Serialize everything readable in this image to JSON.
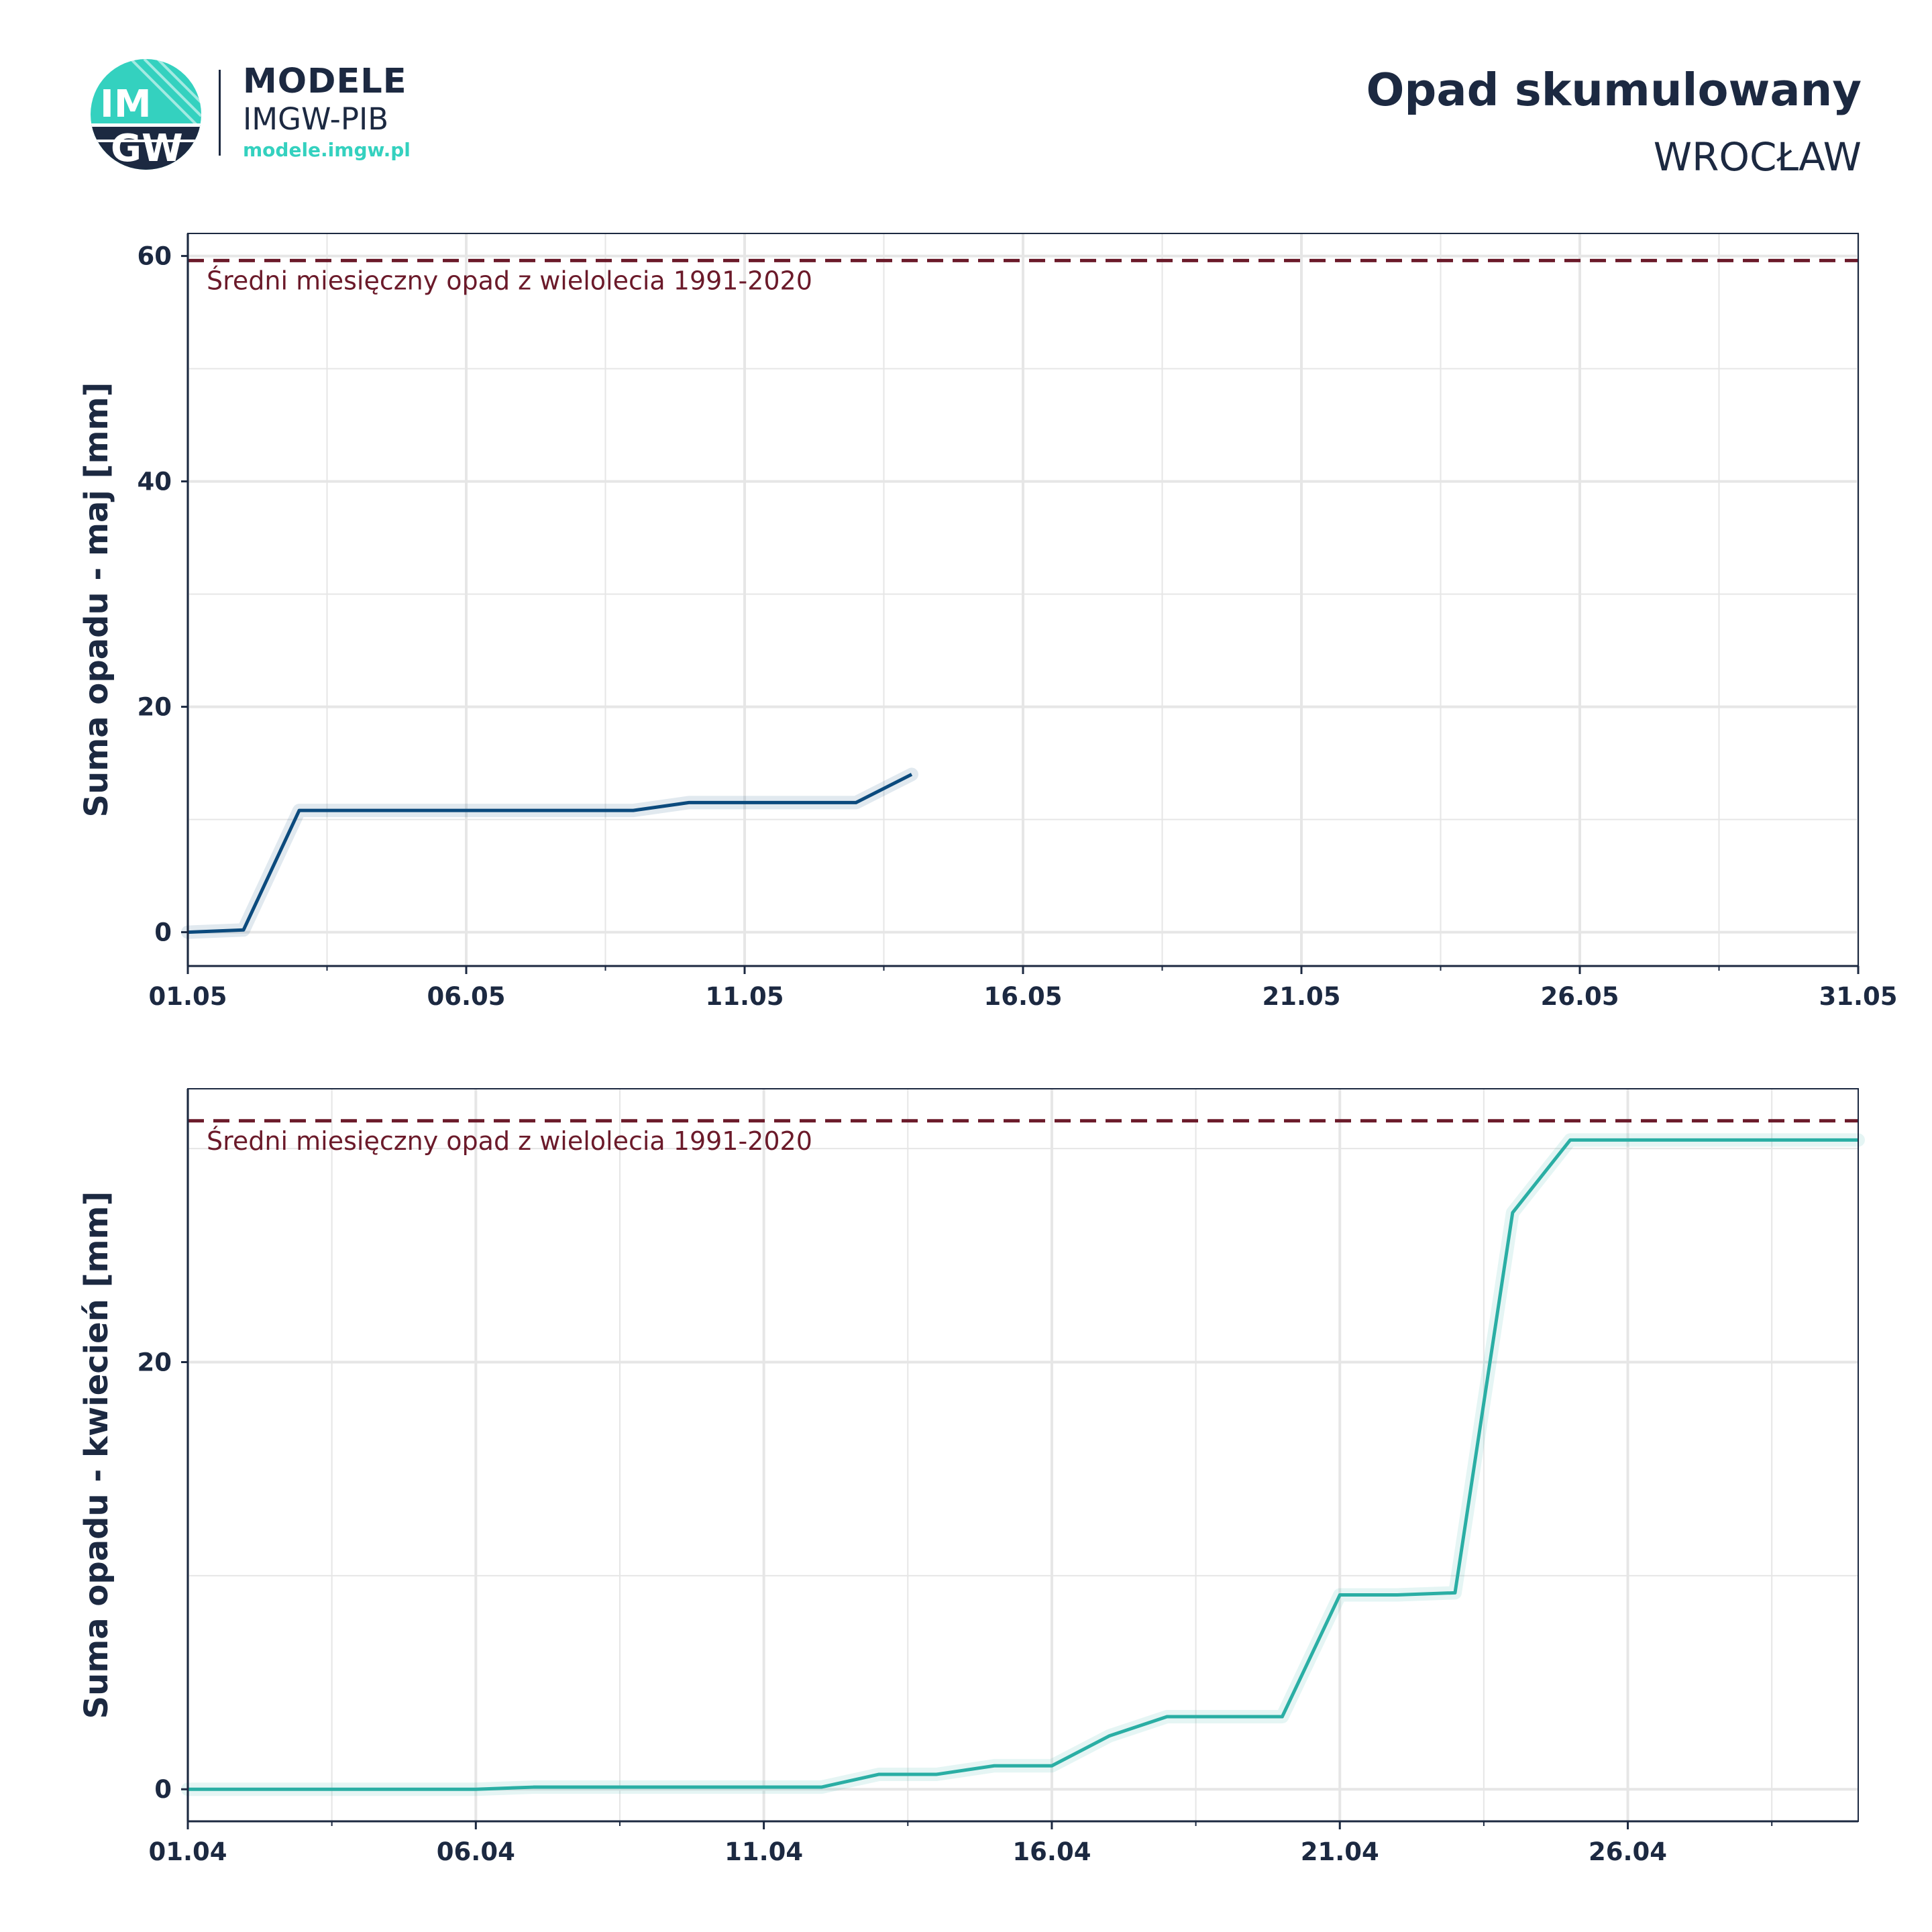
{
  "header": {
    "brand_main": "MODELE",
    "brand_sub": "IMGW-PIB",
    "brand_url": "modele.imgw.pl",
    "logo_text": [
      "IM",
      "GW"
    ],
    "title": "Opad skumulowany",
    "subtitle": "WROCŁAW"
  },
  "colors": {
    "text": "#1c2941",
    "may_line": "#0b4a7d",
    "april_line": "#2aaea4",
    "mean_line": "#6b1a2a",
    "grid": "#e6e6e6",
    "logo_teal": "#34d1bf"
  },
  "chart_data": [
    {
      "type": "line",
      "ylabel": "Suma opadu - maj  [mm]",
      "x_categories": [
        "01.05",
        "02.05",
        "03.05",
        "04.05",
        "05.05",
        "06.05",
        "07.05",
        "08.05",
        "09.05",
        "10.05",
        "11.05",
        "12.05",
        "13.05",
        "14.05",
        "15.05",
        "16.05",
        "17.05",
        "18.05",
        "19.05",
        "20.05",
        "21.05",
        "22.05",
        "23.05",
        "24.05",
        "25.05",
        "26.05",
        "27.05",
        "28.05",
        "29.05",
        "30.05",
        "31.05"
      ],
      "x_tick_labels": [
        "01.05",
        "06.05",
        "11.05",
        "16.05",
        "21.05",
        "26.05",
        "31.05"
      ],
      "ylim": [
        -3,
        62
      ],
      "y_ticks": [
        0,
        20,
        40,
        60
      ],
      "grid": true,
      "series": [
        {
          "values": [
            0.0,
            0.2,
            10.8,
            10.8,
            10.8,
            10.8,
            10.8,
            10.8,
            10.8,
            11.5,
            11.5,
            11.5,
            11.5,
            14.0
          ]
        }
      ],
      "reference_line": {
        "value": 59.6,
        "label": "Średni miesięczny opad z wielolecia 1991-2020"
      }
    },
    {
      "type": "line",
      "ylabel": "Suma opadu - kwiecień  [mm]",
      "x_categories": [
        "01.04",
        "02.04",
        "03.04",
        "04.04",
        "05.04",
        "06.04",
        "07.04",
        "08.04",
        "09.04",
        "10.04",
        "11.04",
        "12.04",
        "13.04",
        "14.04",
        "15.04",
        "16.04",
        "17.04",
        "18.04",
        "19.04",
        "20.04",
        "21.04",
        "22.04",
        "23.04",
        "24.04",
        "25.04",
        "26.04",
        "27.04",
        "28.04",
        "29.04",
        "30.04"
      ],
      "x_tick_labels": [
        "01.04",
        "06.04",
        "11.04",
        "16.04",
        "21.04",
        "26.04"
      ],
      "ylim": [
        -1.5,
        32.8
      ],
      "y_ticks": [
        0,
        20
      ],
      "grid": true,
      "series": [
        {
          "values": [
            0.0,
            0.0,
            0.0,
            0.0,
            0.0,
            0.0,
            0.1,
            0.1,
            0.1,
            0.1,
            0.1,
            0.1,
            0.7,
            0.7,
            1.1,
            1.1,
            2.5,
            3.4,
            3.4,
            3.4,
            9.1,
            9.1,
            9.2,
            27.0,
            30.4,
            30.4,
            30.4,
            30.4,
            30.4,
            30.4
          ]
        }
      ],
      "reference_line": {
        "value": 31.3,
        "label": "Średni miesięczny opad z wielolecia 1991-2020"
      }
    }
  ]
}
